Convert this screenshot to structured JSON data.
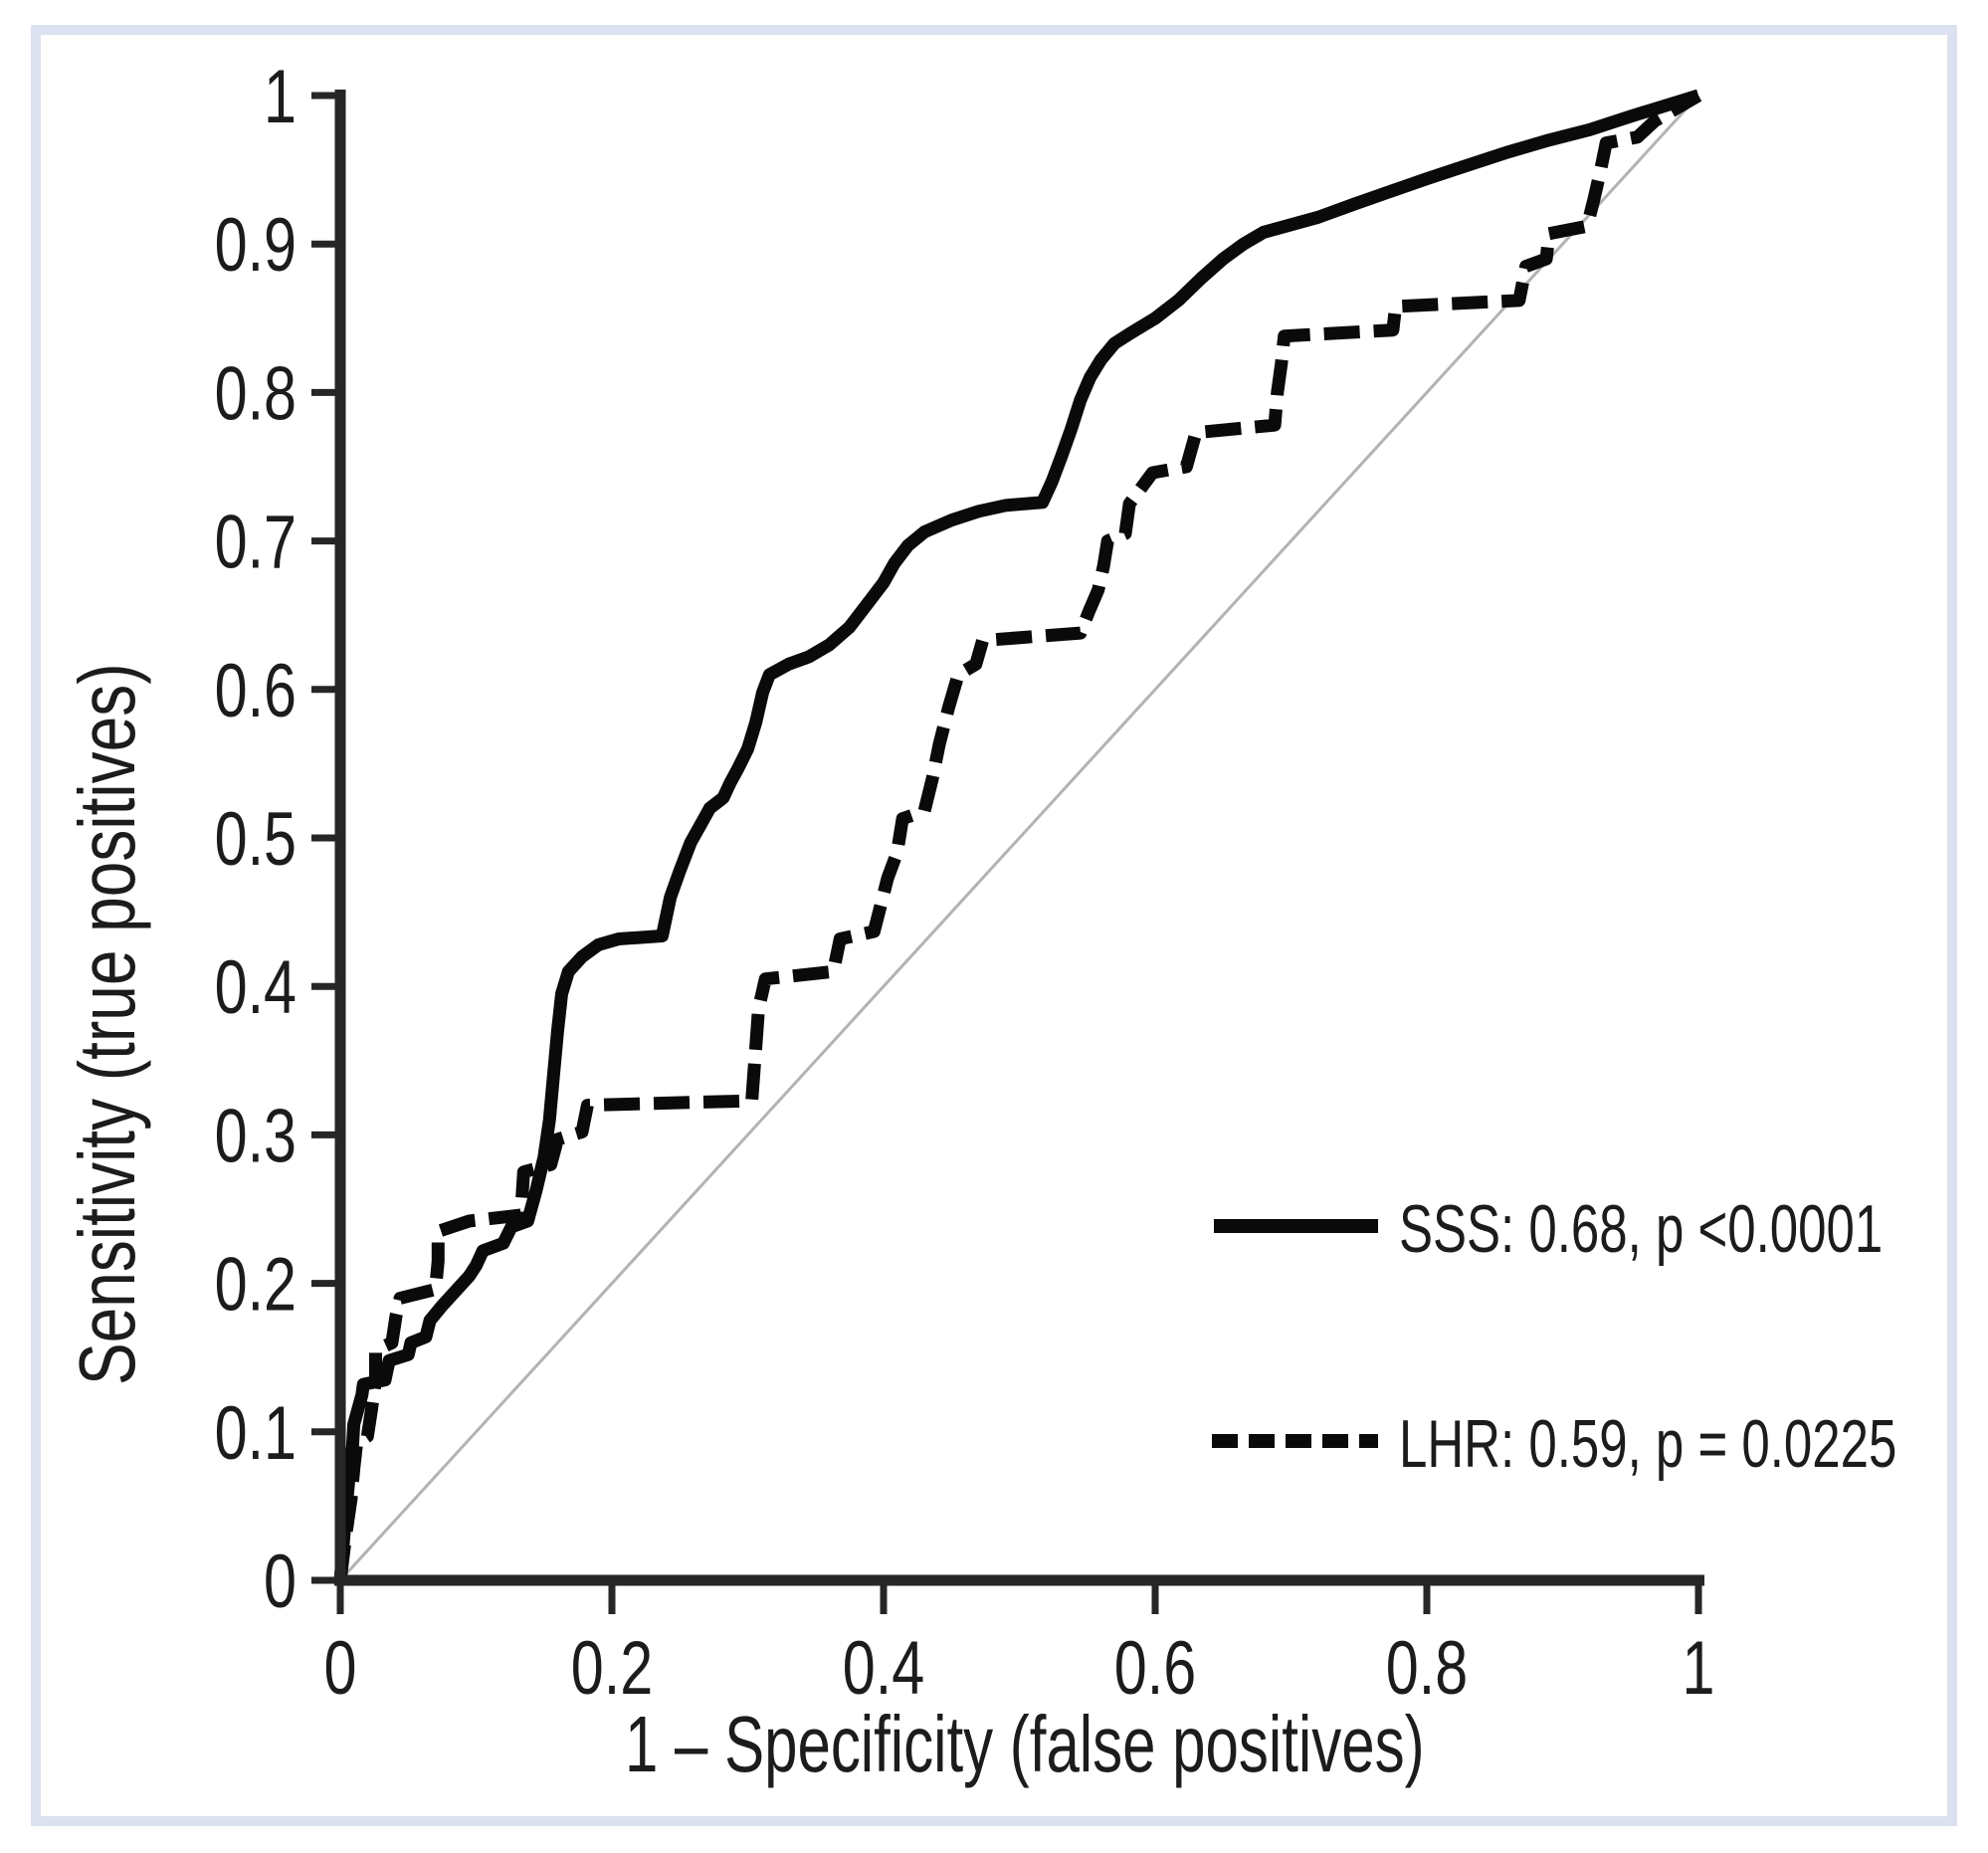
{
  "figure": {
    "background_color": "#ffffff",
    "border_color": "#dce1ef",
    "axis_color": "#262626",
    "text_color": "#1c1c1c"
  },
  "chart_data": {
    "type": "line",
    "subtype": "roc-curve",
    "title": "",
    "xlabel": "1 – Specificity (false positives)",
    "ylabel": "Sensitivity (true positives)",
    "xlim": [
      0,
      1
    ],
    "ylim": [
      0,
      1
    ],
    "grid": false,
    "legend_position": "lower-right",
    "x_ticks": [
      0,
      0.2,
      0.4,
      0.6,
      0.8,
      1
    ],
    "x_tick_labels": [
      "0",
      "0.2",
      "0.4",
      "0.6",
      "0.8",
      "1"
    ],
    "y_ticks": [
      0,
      0.1,
      0.2,
      0.3,
      0.4,
      0.5,
      0.6,
      0.7,
      0.8,
      0.9,
      1
    ],
    "y_tick_labels": [
      "0",
      "0.1",
      "0.2",
      "0.3",
      "0.4",
      "0.5",
      "0.6",
      "0.7",
      "0.8",
      "0.9",
      "1"
    ],
    "reference_line": {
      "from": [
        0,
        0
      ],
      "to": [
        1,
        1
      ],
      "color": "#b3b3b3"
    },
    "series": [
      {
        "name": "SSS",
        "auc": "0.68",
        "p_value": "<0.0001",
        "legend_label": "SSS: 0.68, p <0.0001",
        "line_style": "solid",
        "color": "#0a0a0a",
        "points": [
          [
            0,
            0
          ],
          [
            0.004,
            0.045
          ],
          [
            0.007,
            0.075
          ],
          [
            0.009,
            0.09
          ],
          [
            0.01,
            0.105
          ],
          [
            0.013,
            0.115
          ],
          [
            0.016,
            0.125
          ],
          [
            0.017,
            0.132
          ],
          [
            0.033,
            0.135
          ],
          [
            0.036,
            0.148
          ],
          [
            0.05,
            0.152
          ],
          [
            0.052,
            0.16
          ],
          [
            0.063,
            0.164
          ],
          [
            0.066,
            0.175
          ],
          [
            0.075,
            0.185
          ],
          [
            0.085,
            0.195
          ],
          [
            0.095,
            0.205
          ],
          [
            0.1,
            0.212
          ],
          [
            0.105,
            0.222
          ],
          [
            0.12,
            0.227
          ],
          [
            0.126,
            0.238
          ],
          [
            0.138,
            0.242
          ],
          [
            0.144,
            0.262
          ],
          [
            0.15,
            0.285
          ],
          [
            0.154,
            0.31
          ],
          [
            0.157,
            0.34
          ],
          [
            0.16,
            0.37
          ],
          [
            0.163,
            0.395
          ],
          [
            0.168,
            0.41
          ],
          [
            0.178,
            0.42
          ],
          [
            0.19,
            0.428
          ],
          [
            0.205,
            0.432
          ],
          [
            0.237,
            0.434
          ],
          [
            0.243,
            0.46
          ],
          [
            0.25,
            0.478
          ],
          [
            0.258,
            0.497
          ],
          [
            0.266,
            0.51
          ],
          [
            0.272,
            0.52
          ],
          [
            0.282,
            0.527
          ],
          [
            0.287,
            0.537
          ],
          [
            0.293,
            0.547
          ],
          [
            0.3,
            0.56
          ],
          [
            0.306,
            0.578
          ],
          [
            0.311,
            0.598
          ],
          [
            0.316,
            0.61
          ],
          [
            0.33,
            0.617
          ],
          [
            0.345,
            0.622
          ],
          [
            0.36,
            0.63
          ],
          [
            0.375,
            0.642
          ],
          [
            0.39,
            0.66
          ],
          [
            0.4,
            0.672
          ],
          [
            0.408,
            0.685
          ],
          [
            0.418,
            0.697
          ],
          [
            0.43,
            0.706
          ],
          [
            0.45,
            0.714
          ],
          [
            0.47,
            0.72
          ],
          [
            0.49,
            0.724
          ],
          [
            0.517,
            0.726
          ],
          [
            0.524,
            0.74
          ],
          [
            0.531,
            0.757
          ],
          [
            0.538,
            0.775
          ],
          [
            0.545,
            0.795
          ],
          [
            0.552,
            0.81
          ],
          [
            0.56,
            0.822
          ],
          [
            0.57,
            0.833
          ],
          [
            0.582,
            0.84
          ],
          [
            0.6,
            0.85
          ],
          [
            0.617,
            0.862
          ],
          [
            0.634,
            0.877
          ],
          [
            0.65,
            0.89
          ],
          [
            0.665,
            0.9
          ],
          [
            0.68,
            0.908
          ],
          [
            0.7,
            0.913
          ],
          [
            0.72,
            0.918
          ],
          [
            0.747,
            0.927
          ],
          [
            0.775,
            0.936
          ],
          [
            0.8,
            0.944
          ],
          [
            0.83,
            0.953
          ],
          [
            0.86,
            0.962
          ],
          [
            0.89,
            0.97
          ],
          [
            0.92,
            0.977
          ],
          [
            0.95,
            0.986
          ],
          [
            0.975,
            0.993
          ],
          [
            1,
            1
          ]
        ]
      },
      {
        "name": "LHR",
        "auc": "0.59",
        "p_value": "= 0.0225",
        "legend_label": "LHR: 0.59, p = 0.0225",
        "line_style": "dashed",
        "color": "#0a0a0a",
        "points": [
          [
            0,
            0
          ],
          [
            0.004,
            0.03
          ],
          [
            0.008,
            0.055
          ],
          [
            0.01,
            0.075
          ],
          [
            0.012,
            0.092
          ],
          [
            0.02,
            0.097
          ],
          [
            0.023,
            0.115
          ],
          [
            0.026,
            0.135
          ],
          [
            0.026,
            0.155
          ],
          [
            0.038,
            0.16
          ],
          [
            0.041,
            0.178
          ],
          [
            0.044,
            0.19
          ],
          [
            0.07,
            0.196
          ],
          [
            0.072,
            0.215
          ],
          [
            0.072,
            0.235
          ],
          [
            0.095,
            0.242
          ],
          [
            0.133,
            0.246
          ],
          [
            0.135,
            0.275
          ],
          [
            0.155,
            0.28
          ],
          [
            0.16,
            0.297
          ],
          [
            0.178,
            0.302
          ],
          [
            0.182,
            0.32
          ],
          [
            0.303,
            0.323
          ],
          [
            0.306,
            0.36
          ],
          [
            0.308,
            0.385
          ],
          [
            0.313,
            0.405
          ],
          [
            0.363,
            0.41
          ],
          [
            0.368,
            0.432
          ],
          [
            0.393,
            0.437
          ],
          [
            0.398,
            0.455
          ],
          [
            0.403,
            0.473
          ],
          [
            0.41,
            0.49
          ],
          [
            0.414,
            0.513
          ],
          [
            0.43,
            0.518
          ],
          [
            0.436,
            0.54
          ],
          [
            0.441,
            0.563
          ],
          [
            0.448,
            0.588
          ],
          [
            0.455,
            0.61
          ],
          [
            0.468,
            0.617
          ],
          [
            0.473,
            0.633
          ],
          [
            0.545,
            0.638
          ],
          [
            0.551,
            0.652
          ],
          [
            0.558,
            0.667
          ],
          [
            0.562,
            0.683
          ],
          [
            0.565,
            0.7
          ],
          [
            0.578,
            0.705
          ],
          [
            0.581,
            0.725
          ],
          [
            0.598,
            0.746
          ],
          [
            0.623,
            0.75
          ],
          [
            0.63,
            0.773
          ],
          [
            0.688,
            0.778
          ],
          [
            0.69,
            0.8
          ],
          [
            0.693,
            0.82
          ],
          [
            0.695,
            0.838
          ],
          [
            0.775,
            0.842
          ],
          [
            0.777,
            0.858
          ],
          [
            0.868,
            0.862
          ],
          [
            0.873,
            0.885
          ],
          [
            0.888,
            0.89
          ],
          [
            0.89,
            0.907
          ],
          [
            0.918,
            0.912
          ],
          [
            0.923,
            0.93
          ],
          [
            0.928,
            0.95
          ],
          [
            0.932,
            0.968
          ],
          [
            0.955,
            0.972
          ],
          [
            0.968,
            0.983
          ],
          [
            1,
            1
          ]
        ]
      }
    ]
  }
}
